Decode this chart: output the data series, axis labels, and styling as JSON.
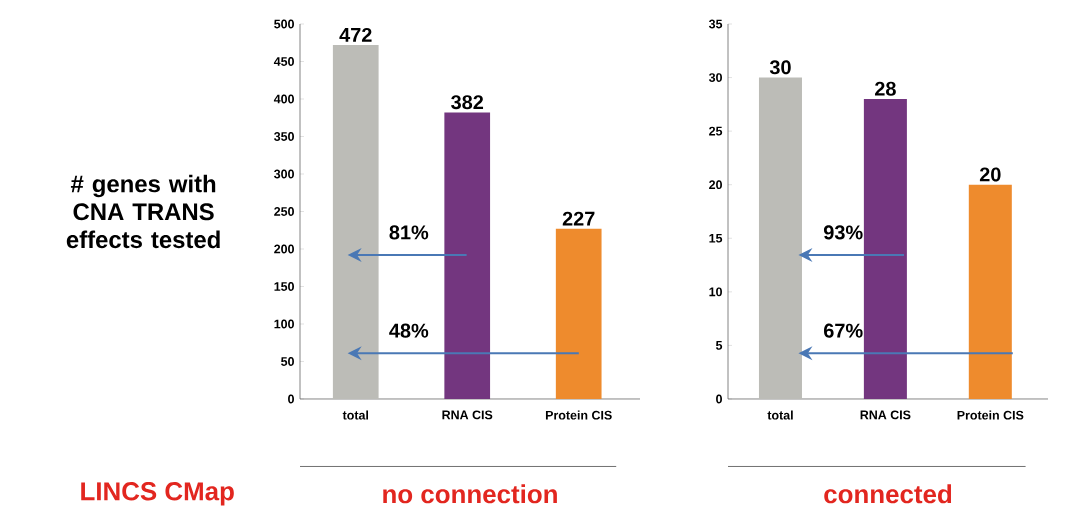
{
  "chart_data": [
    {
      "type": "bar",
      "ylabel": "# genes with CNA TRANS effects tested",
      "xlabel": "no connection",
      "categories": [
        "total",
        "RNA CIS",
        "Protein CIS"
      ],
      "values": [
        472,
        382,
        227
      ],
      "colors": [
        "#bcbcb7",
        "#73367f",
        "#ee8b2d"
      ],
      "ylim": [
        0,
        500
      ],
      "yticks": [
        0,
        50,
        100,
        150,
        200,
        250,
        300,
        350,
        400,
        450,
        500
      ],
      "data_labels": true,
      "annotations": [
        "81%",
        "48%",
        "LINCS CMap"
      ]
    },
    {
      "type": "bar",
      "xlabel": "connected",
      "categories": [
        "total",
        "RNA CIS",
        "Protein CIS"
      ],
      "values": [
        30,
        28,
        20
      ],
      "colors": [
        "#bcbcb7",
        "#73367f",
        "#ee8b2d"
      ],
      "ylim": [
        0,
        35
      ],
      "yticks": [
        0,
        5,
        10,
        15,
        20,
        25,
        30,
        35
      ],
      "data_labels": true,
      "annotations": [
        "93%",
        "67%"
      ]
    }
  ]
}
